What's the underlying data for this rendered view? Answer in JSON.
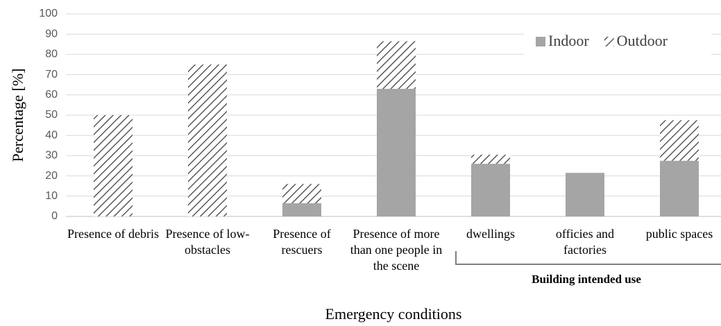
{
  "chart_data": {
    "type": "stacked_bar",
    "y_label": "Percentage [%]",
    "x_label": "Emergency conditions",
    "annotation": "Building intended use",
    "categories": [
      "Presence of debris",
      "Presence of low-obstacles",
      "Presence of rescuers",
      "Presence of more than one people in the scene",
      "dwellings",
      "officies and factories",
      "public spaces"
    ],
    "series": [
      {
        "name": "Indoor",
        "color": "#a5a5a5",
        "values": [
          0,
          0,
          6.5,
          63,
          26,
          21.5,
          27.5
        ]
      },
      {
        "name": "Outdoor",
        "color": "#595959",
        "pattern": "hatch",
        "values": [
          50,
          75,
          9.5,
          23.5,
          4.5,
          0,
          20
        ]
      }
    ],
    "ylim": [
      0,
      100
    ],
    "yticks": [
      0,
      10,
      20,
      30,
      40,
      50,
      60,
      70,
      80,
      90,
      100
    ],
    "grid": true,
    "legend": "upper right"
  }
}
